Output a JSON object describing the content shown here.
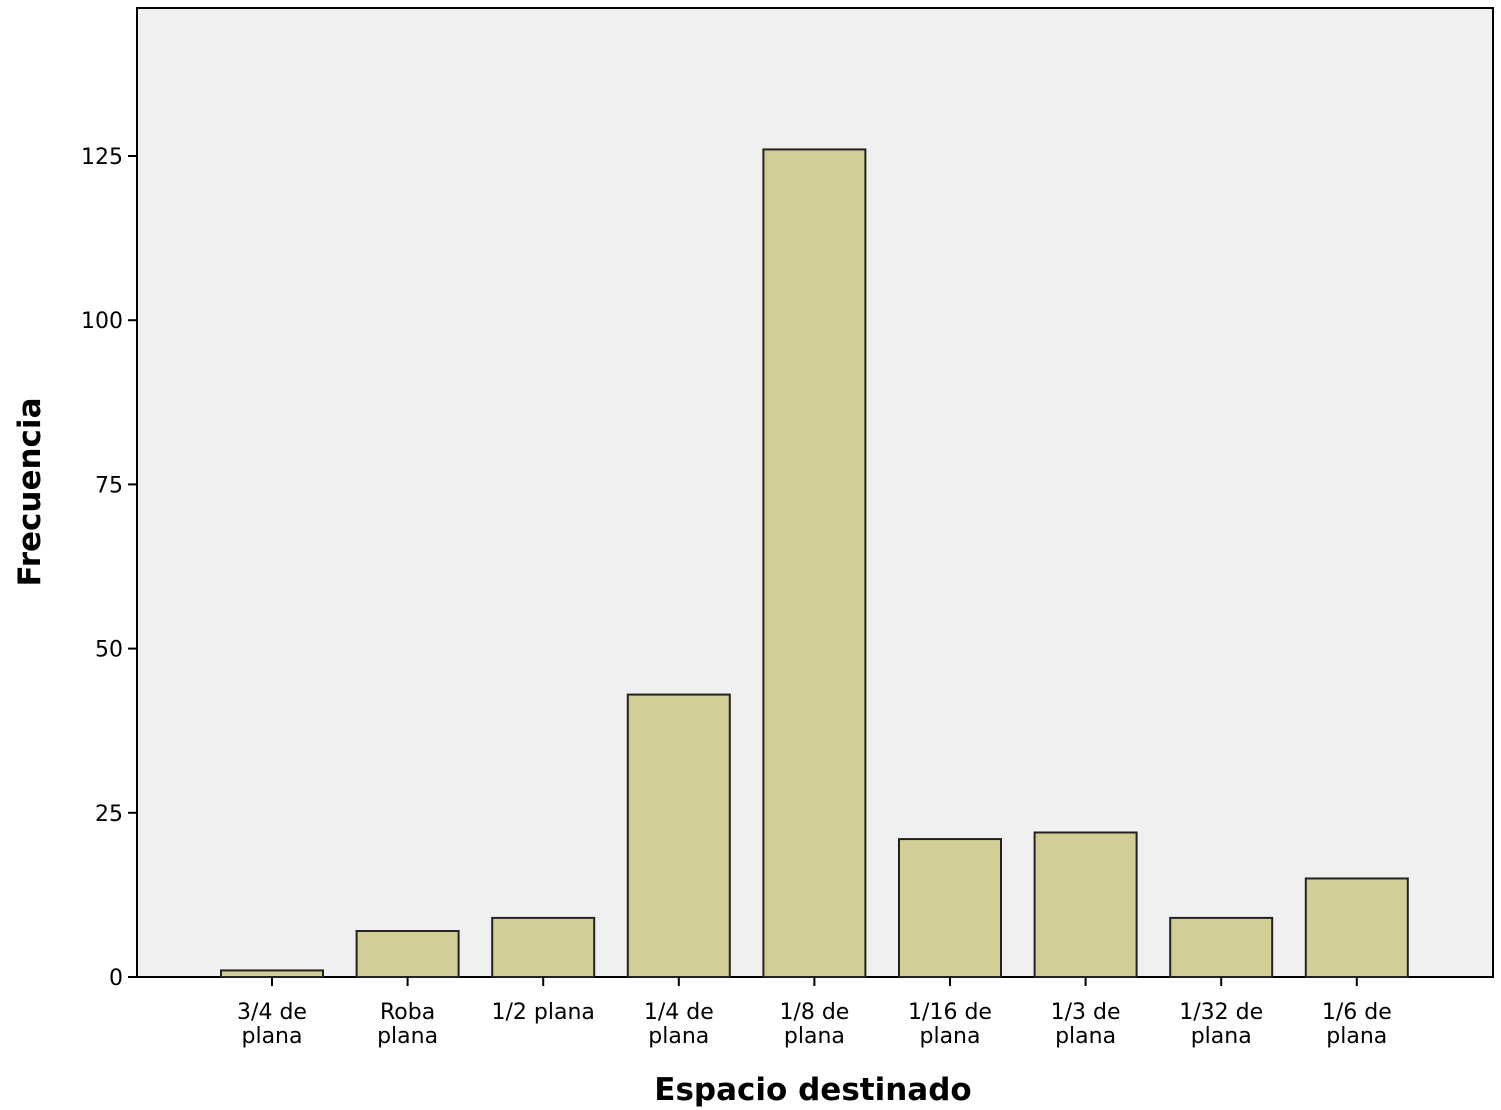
{
  "chart_data": {
    "type": "bar",
    "xlabel": "Espacio destinado",
    "ylabel": "Frecuencia",
    "categories": [
      [
        "3/4 de",
        "plana"
      ],
      [
        "Roba",
        "plana"
      ],
      [
        "1/2 plana"
      ],
      [
        "1/4 de",
        "plana"
      ],
      [
        "1/8 de",
        "plana"
      ],
      [
        "1/16 de",
        "plana"
      ],
      [
        "1/3 de",
        "plana"
      ],
      [
        "1/32 de",
        "plana"
      ],
      [
        "1/6 de",
        "plana"
      ]
    ],
    "values": [
      1,
      7,
      9,
      43,
      126,
      21,
      22,
      9,
      15
    ],
    "ylim": [
      0,
      148
    ],
    "yticks": [
      0,
      25,
      50,
      75,
      100,
      125
    ],
    "grid": false,
    "legend": "none",
    "colors": {
      "plot_background": "#f0f0f0",
      "bar_fill": "#d3ce97",
      "bar_stroke": "#222222",
      "axis": "#000000"
    }
  }
}
